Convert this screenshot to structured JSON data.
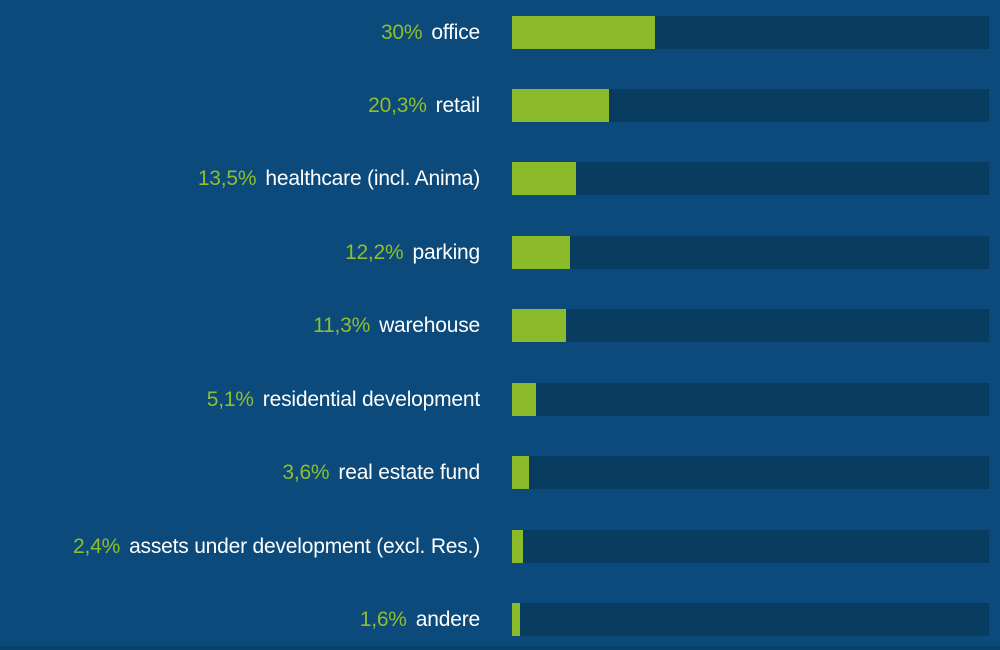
{
  "colors": {
    "background": "#0c4a7b",
    "bar_track": "#083c60",
    "bar_fill": "#8bba2b",
    "percent_text": "#8fbe2d",
    "label_text": "#ffffff",
    "bottom_strip": "#07406a"
  },
  "chart_data": {
    "type": "bar",
    "orientation": "horizontal",
    "title": "",
    "xlabel": "",
    "ylabel": "",
    "xlim": [
      0,
      100
    ],
    "grid": false,
    "legend": false,
    "unit": "%",
    "decimal_separator": ",",
    "categories": [
      "office",
      "retail",
      "healthcare (incl. Anima)",
      "parking",
      "warehouse",
      "residential development",
      "real estate fund",
      "assets under development (excl. Res.)",
      "andere"
    ],
    "values": [
      30,
      20.3,
      13.5,
      12.2,
      11.3,
      5.1,
      3.6,
      2.4,
      1.6
    ],
    "value_labels": [
      "30%",
      "20,3%",
      "13,5%",
      "12,2%",
      "11,3%",
      "5,1%",
      "3,6%",
      "2,4%",
      "1,6%"
    ]
  }
}
